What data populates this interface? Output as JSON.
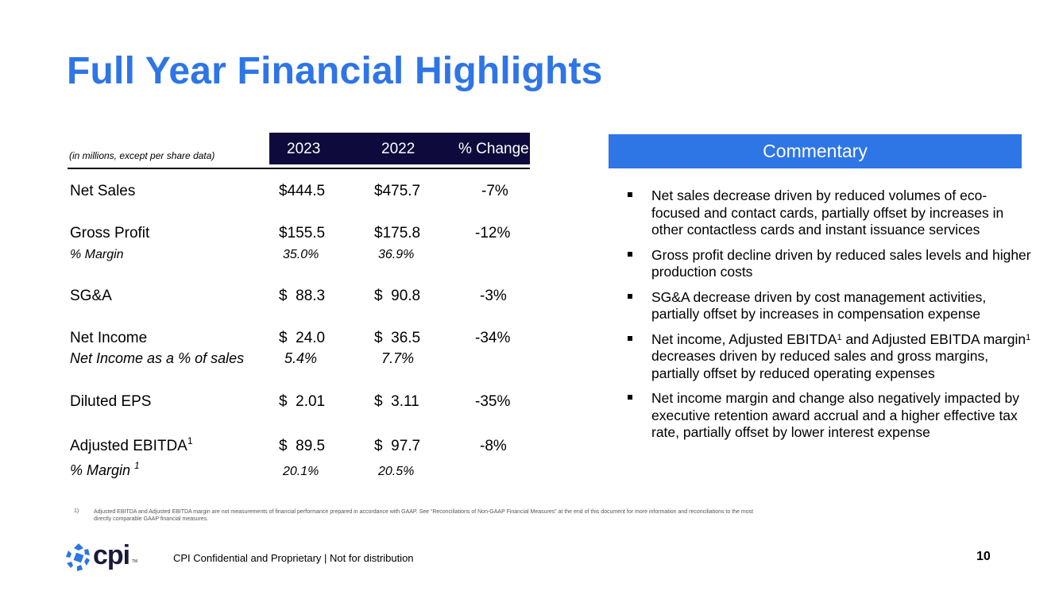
{
  "title": "Full Year Financial Highlights",
  "table": {
    "units_note": "(in millions, except per share data)",
    "col_2023": "2023",
    "col_2022": "2022",
    "col_change": "% Change",
    "rows": {
      "net_sales": {
        "label": "Net Sales",
        "v2023": "$444.5",
        "v2022": "$475.7",
        "change": "-7%"
      },
      "gross_profit": {
        "label": "Gross Profit",
        "v2023": "$155.5",
        "v2022": "$175.8",
        "change": "-12%"
      },
      "gp_margin": {
        "label": "% Margin",
        "v2023": "35.0%",
        "v2022": "36.9%"
      },
      "sga": {
        "label": "SG&A",
        "v2023": "$  88.3",
        "v2022": "$  90.8",
        "change": "-3%"
      },
      "net_income": {
        "label": "Net Income",
        "v2023": "$  24.0",
        "v2022": "$  36.5",
        "change": "-34%"
      },
      "ni_pct": {
        "label": "Net Income as a % of sales",
        "v2023": "5.4%",
        "v2022": "7.7%"
      },
      "eps": {
        "label": "Diluted EPS",
        "v2023": "$  2.01",
        "v2022": "$  3.11",
        "change": "-35%"
      },
      "ebitda": {
        "label": "Adjusted EBITDA",
        "sup": "1",
        "v2023": "$  89.5",
        "v2022": "$  97.7",
        "change": "-8%"
      },
      "ebitda_margin": {
        "label": "% Margin ",
        "sup": "1",
        "v2023": "20.1%",
        "v2022": "20.5%"
      }
    }
  },
  "commentary": {
    "header": "Commentary",
    "bullets": [
      {
        "text": "Net sales decrease driven by reduced volumes of eco-focused and contact cards, partially offset by increases in other contactless cards and instant issuance services"
      },
      {
        "text": "Gross profit decline driven by reduced sales levels and higher production costs"
      },
      {
        "text": "SG&A decrease driven by cost management activities, partially offset by increases in compensation expense"
      },
      {
        "pre": "Net income, Adjusted EBITDA",
        "sup1": "1",
        "mid": " and Adjusted EBITDA margin",
        "sup2": "1",
        "post": " decreases driven by reduced sales and gross margins, partially offset by reduced operating expenses"
      },
      {
        "text": "Net income margin and change also negatively impacted by executive retention award accrual and a higher effective tax rate, partially offset by lower interest expense"
      }
    ]
  },
  "footnote": {
    "num": "1)",
    "text": "Adjusted EBITDA and Adjusted EBITDA margin are not measurements of financial performance prepared in accordance with GAAP. See “Reconciliations of Non-GAAP Financial Measures” at the end of this document for more information and reconciliations to the most directly comparable GAAP financial measures."
  },
  "footer": {
    "logo": "cpi",
    "logo_tm": "TM",
    "text": "CPI Confidential and Proprietary | Not for distribution",
    "page": "10"
  },
  "colors": {
    "accent": "#2e75e6",
    "header_dark": "#0e0b3c"
  }
}
